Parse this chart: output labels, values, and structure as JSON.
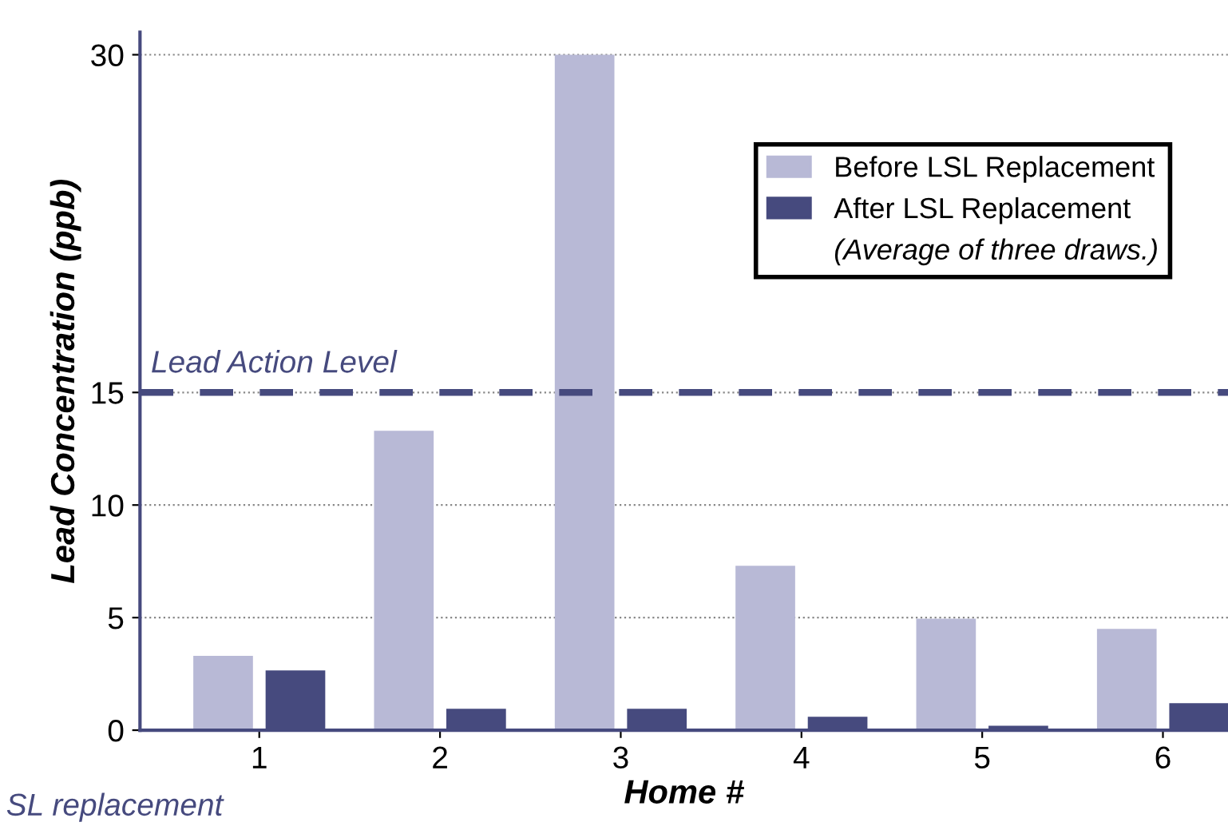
{
  "chart_data": {
    "type": "bar",
    "xlabel": "Home #",
    "ylabel": "Lead Concentration (ppb)",
    "categories": [
      "1",
      "2",
      "3",
      "4",
      "5",
      "6"
    ],
    "series": [
      {
        "name": "Before LSL Replacement",
        "color": "#b8b9d6",
        "values": [
          3.3,
          13.3,
          30,
          7.3,
          4.95,
          4.5
        ]
      },
      {
        "name": "After LSL Replacement",
        "color": "#464a7e",
        "values": [
          2.65,
          0.95,
          0.95,
          0.6,
          0.2,
          1.2
        ]
      }
    ],
    "ylim": [
      0,
      31
    ],
    "yticks": [
      0,
      5,
      10,
      15,
      30
    ],
    "grid": "y",
    "legend": "top right",
    "ref_lines": [
      {
        "axis": "y",
        "value": 15,
        "label": "Lead Action Level",
        "color": "#464a7e",
        "line_style": "dashed"
      }
    ],
    "annotations": [
      "(Average of three draws.)",
      "SL replacement"
    ]
  }
}
